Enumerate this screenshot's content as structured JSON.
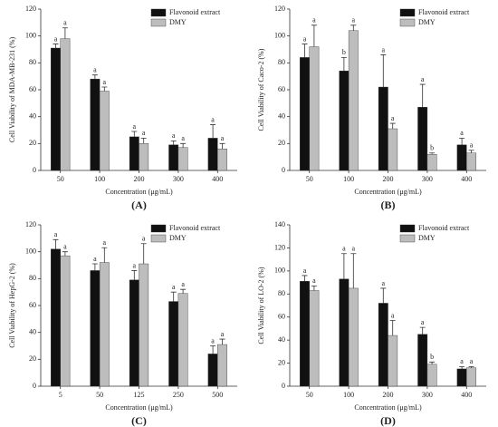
{
  "chart_data": [
    {
      "type": "bar",
      "panel_label": "(A)",
      "ylabel": "Cell Viability of MDA-MB-231 (%)",
      "xlabel": "Concentration (μg/mL)",
      "categories": [
        "50",
        "100",
        "200",
        "300",
        "400"
      ],
      "ylim": [
        0,
        120
      ],
      "yticks": [
        0,
        20,
        40,
        60,
        80,
        100,
        120
      ],
      "series": [
        {
          "name": "Flavonoid extract",
          "color": "#111111",
          "values": [
            91,
            68,
            25,
            19,
            24
          ],
          "errors": [
            3,
            3,
            4,
            3,
            10
          ],
          "letters": [
            "a",
            "a",
            "a",
            "a",
            "a"
          ]
        },
        {
          "name": "DMY",
          "color": "#bdbdbd",
          "values": [
            98,
            59,
            20,
            17,
            16
          ],
          "errors": [
            8,
            3,
            4,
            3,
            4
          ],
          "letters": [
            "a",
            "a",
            "a",
            "a",
            "a"
          ]
        }
      ]
    },
    {
      "type": "bar",
      "panel_label": "(B)",
      "ylabel": "Cell Viability of Caco-2 (%)",
      "xlabel": "Concentration (μg/mL)",
      "categories": [
        "50",
        "100",
        "200",
        "300",
        "400"
      ],
      "ylim": [
        0,
        120
      ],
      "yticks": [
        0,
        20,
        40,
        60,
        80,
        100,
        120
      ],
      "series": [
        {
          "name": "Flavonoid extract",
          "color": "#111111",
          "values": [
            84,
            74,
            62,
            47,
            19
          ],
          "errors": [
            10,
            10,
            24,
            17,
            5
          ],
          "letters": [
            "a",
            "b",
            "a",
            "a",
            "a"
          ]
        },
        {
          "name": "DMY",
          "color": "#bdbdbd",
          "values": [
            92,
            104,
            31,
            12,
            13
          ],
          "errors": [
            16,
            4,
            4,
            1,
            2
          ],
          "letters": [
            "a",
            "a",
            "a",
            "b",
            "a"
          ]
        }
      ]
    },
    {
      "type": "bar",
      "panel_label": "(C)",
      "ylabel": "Cell Viability of HepG-2 (%)",
      "xlabel": "Concentration (μg/mL)",
      "categories": [
        "5",
        "50",
        "125",
        "250",
        "500"
      ],
      "ylim": [
        0,
        120
      ],
      "yticks": [
        0,
        20,
        40,
        60,
        80,
        100,
        120
      ],
      "series": [
        {
          "name": "Flavonoid extract",
          "color": "#111111",
          "values": [
            102,
            86,
            79,
            63,
            24
          ],
          "errors": [
            7,
            5,
            7,
            7,
            6
          ],
          "letters": [
            "a",
            "a",
            "a",
            "a",
            "a"
          ]
        },
        {
          "name": "DMY",
          "color": "#bdbdbd",
          "values": [
            97,
            92,
            91,
            69,
            31
          ],
          "errors": [
            3,
            11,
            15,
            3,
            4
          ],
          "letters": [
            "a",
            "a",
            "a",
            "a",
            "a"
          ]
        }
      ]
    },
    {
      "type": "bar",
      "panel_label": "(D)",
      "ylabel": "Cell Viability of LO-2 (%)",
      "xlabel": "Concentration (μg/mL)",
      "categories": [
        "50",
        "100",
        "200",
        "300",
        "400"
      ],
      "ylim": [
        0,
        140
      ],
      "yticks": [
        0,
        20,
        40,
        60,
        80,
        100,
        120,
        140
      ],
      "series": [
        {
          "name": "Flavonoid extract",
          "color": "#111111",
          "values": [
            91,
            93,
            72,
            45,
            15
          ],
          "errors": [
            5,
            22,
            13,
            6,
            2
          ],
          "letters": [
            "a",
            "a",
            "a",
            "a",
            "a"
          ]
        },
        {
          "name": "DMY",
          "color": "#bdbdbd",
          "values": [
            83,
            85,
            44,
            19,
            16
          ],
          "errors": [
            4,
            30,
            13,
            2,
            1
          ],
          "letters": [
            "a",
            "a",
            "a",
            "b",
            "a"
          ]
        }
      ]
    }
  ]
}
